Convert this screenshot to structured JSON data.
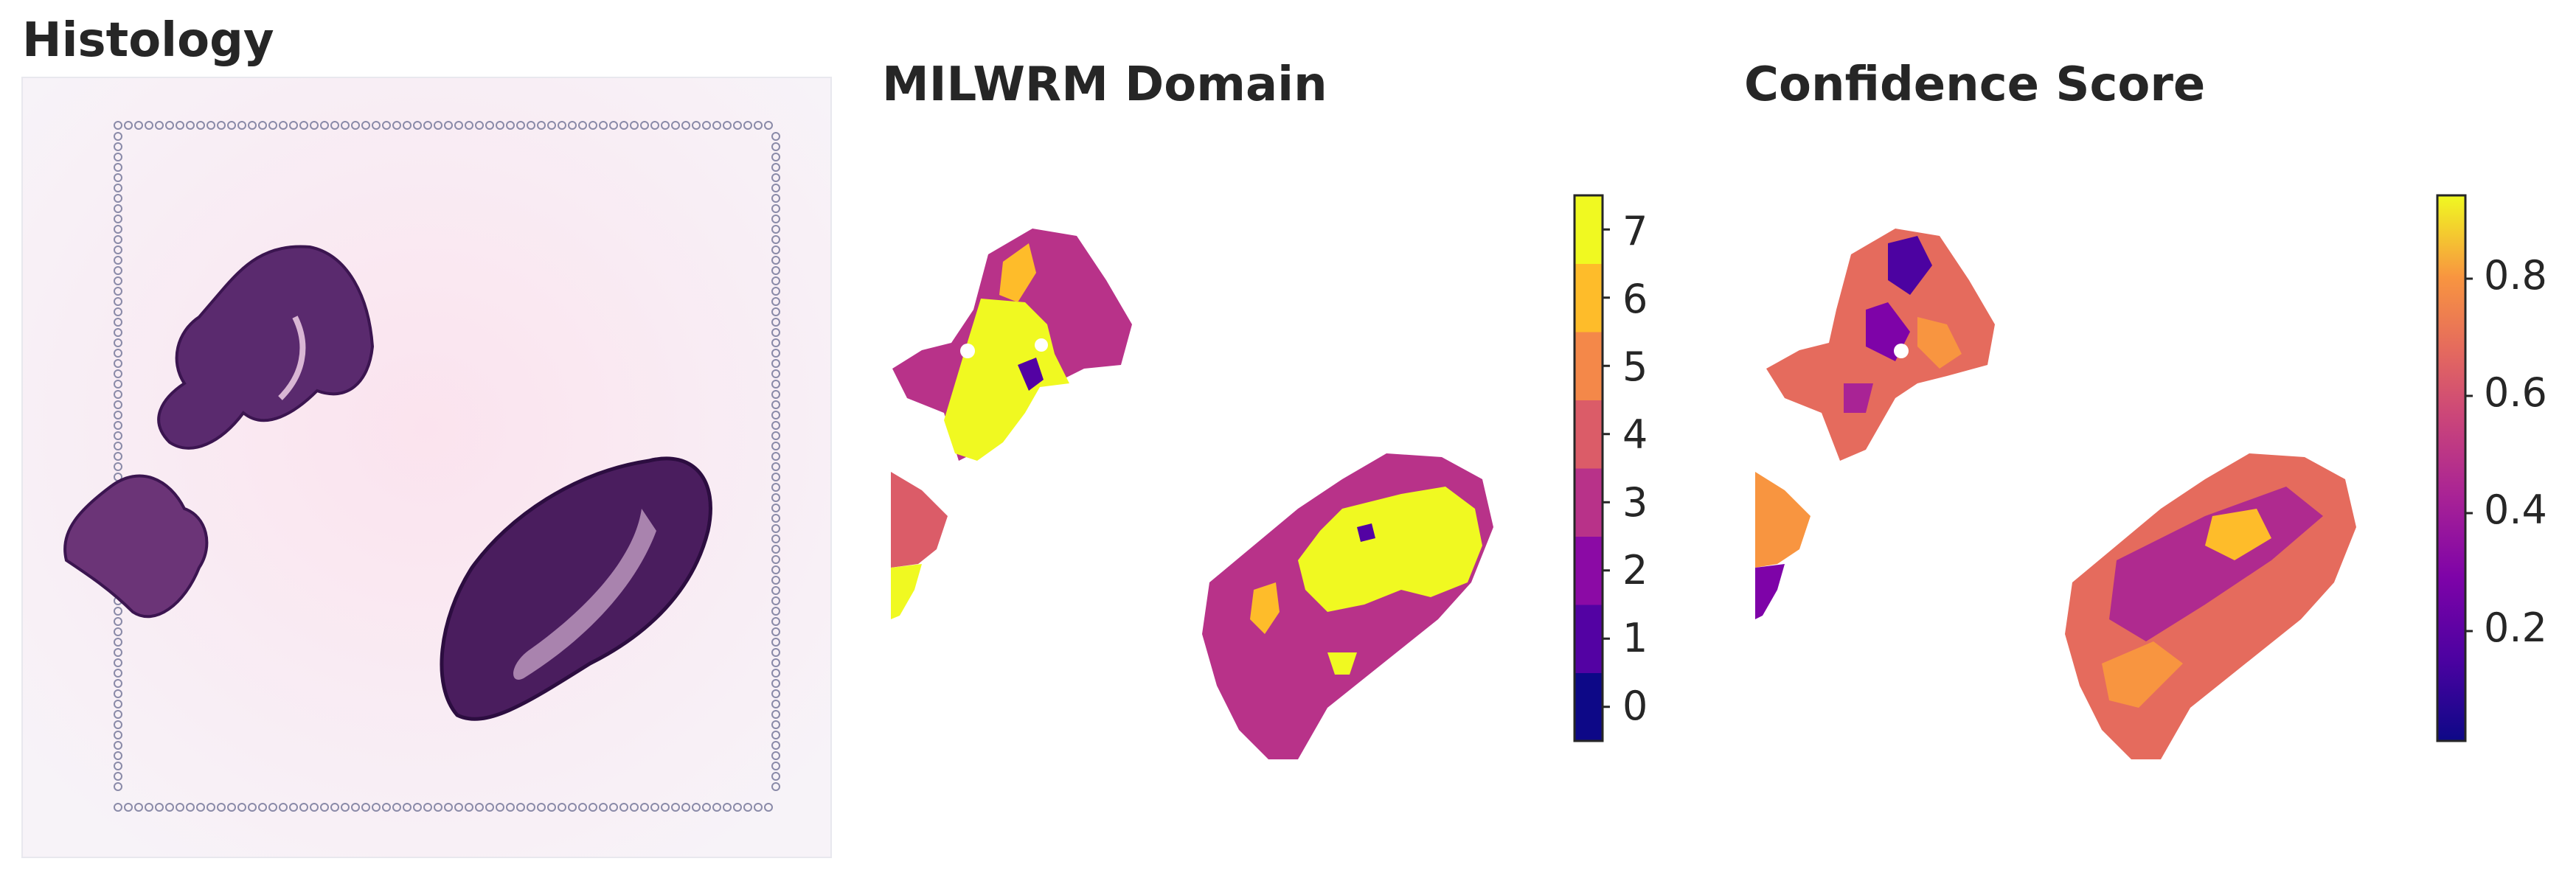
{
  "panels": {
    "histology": {
      "title": "Histology"
    },
    "domain": {
      "title": "MILWRM Domain",
      "colorbar_ticks": [
        "0",
        "1",
        "2",
        "3",
        "4",
        "5",
        "6",
        "7"
      ],
      "colors": [
        "#0d0887",
        "#5302a3",
        "#8b0aa5",
        "#b83289",
        "#db5c68",
        "#f48849",
        "#febc2a",
        "#f0f921"
      ]
    },
    "confidence": {
      "title": "Confidence Score",
      "colorbar_ticks": [
        "0.2",
        "0.4",
        "0.6",
        "0.8"
      ],
      "colormap": "plasma"
    }
  }
}
